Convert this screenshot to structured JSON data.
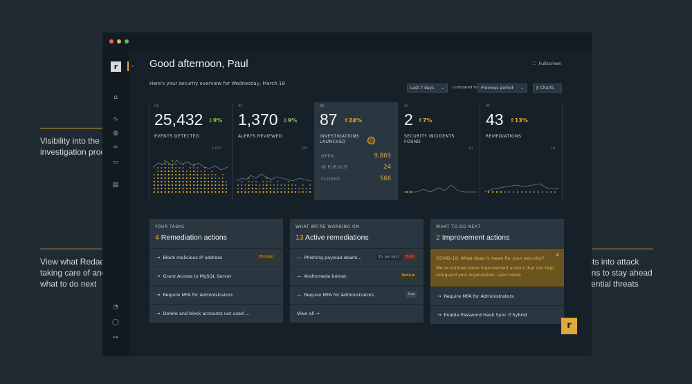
{
  "annotations": {
    "left1": "Visibility into the security investigation process",
    "left2": "View what Redacted is taking care of and know what to do next",
    "right": "Insights into attack patterns to stay ahead of potential threats"
  },
  "colors": {
    "accent": "#e0a93a",
    "up": "#e0a93a",
    "down": "#8fc04a",
    "bg": "#1f2a33"
  },
  "sidebar": {
    "logo": "r",
    "icons": [
      "home-icon",
      "activity-icon",
      "globe-icon",
      "link-icon",
      "document-icon",
      "report-icon",
      "bell-icon",
      "user-icon",
      "logout-icon"
    ]
  },
  "header": {
    "greeting": "Good afternoon, Paul",
    "subtitle": "Here's your security overview for Wednesday, March 18",
    "fullscreen": "Fullscreen",
    "period": "Last 7 days",
    "compared_label": "Compared to",
    "compared_value": "Previous period",
    "charts": "Charts"
  },
  "stats": [
    {
      "num": "01",
      "value": "25,432",
      "change": "9%",
      "direction": "down",
      "label": "EVENTS DETECTED",
      "max": "5,000"
    },
    {
      "num": "02",
      "value": "1,370",
      "change": "9%",
      "direction": "down",
      "label": "ALERTS REVIEWED",
      "max": "150"
    },
    {
      "num": "03",
      "value": "87",
      "change": "24%",
      "direction": "up",
      "label": "INVESTIGATIONS LAUNCHED",
      "rows": [
        {
          "label": "OPEN",
          "value": "9,869"
        },
        {
          "label": "IN PURSUIT",
          "value": "24"
        },
        {
          "label": "CLOSED",
          "value": "566"
        }
      ]
    },
    {
      "num": "04",
      "value": "2",
      "change": "7%",
      "direction": "up",
      "label": "SECURITY INCIDENTS FOUND",
      "max": "10"
    },
    {
      "num": "05",
      "value": "43",
      "change": "13%",
      "direction": "up",
      "label": "REMEDIATIONS",
      "max": "10"
    }
  ],
  "tasks": {
    "kicker": "YOUR TASKS",
    "count": "4",
    "title": "Remediation actions",
    "items": [
      {
        "label": "Block malicious IP address",
        "badge": "Blocker"
      },
      {
        "label": "Grant Access to MySQL Server",
        "badge": ""
      },
      {
        "label": "Require MFA for Administrators",
        "badge": ""
      },
      {
        "label": "Delete and block accounts not used ...",
        "badge": ""
      }
    ]
  },
  "working": {
    "kicker": "WHAT WE'RE WORKING ON",
    "count": "13",
    "title": "Active remediations",
    "items": [
      {
        "label": "Phishing payload downl...",
        "status": "In pursuit",
        "badge": "High"
      },
      {
        "label": "Andromeda botnet",
        "status": "",
        "badge": "Medium"
      },
      {
        "label": "Require MFA for Administrators",
        "status": "",
        "badge": "Low"
      }
    ],
    "view_all": "View all"
  },
  "next": {
    "kicker": "WHAT TO DO NEXT",
    "count": "2",
    "title": "Improvement actions",
    "covid_title": "COVID-19: What does it mean for your security?",
    "covid_body": "We've outlined some improvement actions that can help safeguard your organization. Learn more",
    "items": [
      {
        "label": "Require MFA for Administrators"
      },
      {
        "label": "Enable Password Hash Sync if hybrid"
      }
    ]
  },
  "chat": {
    "logo": "r"
  }
}
